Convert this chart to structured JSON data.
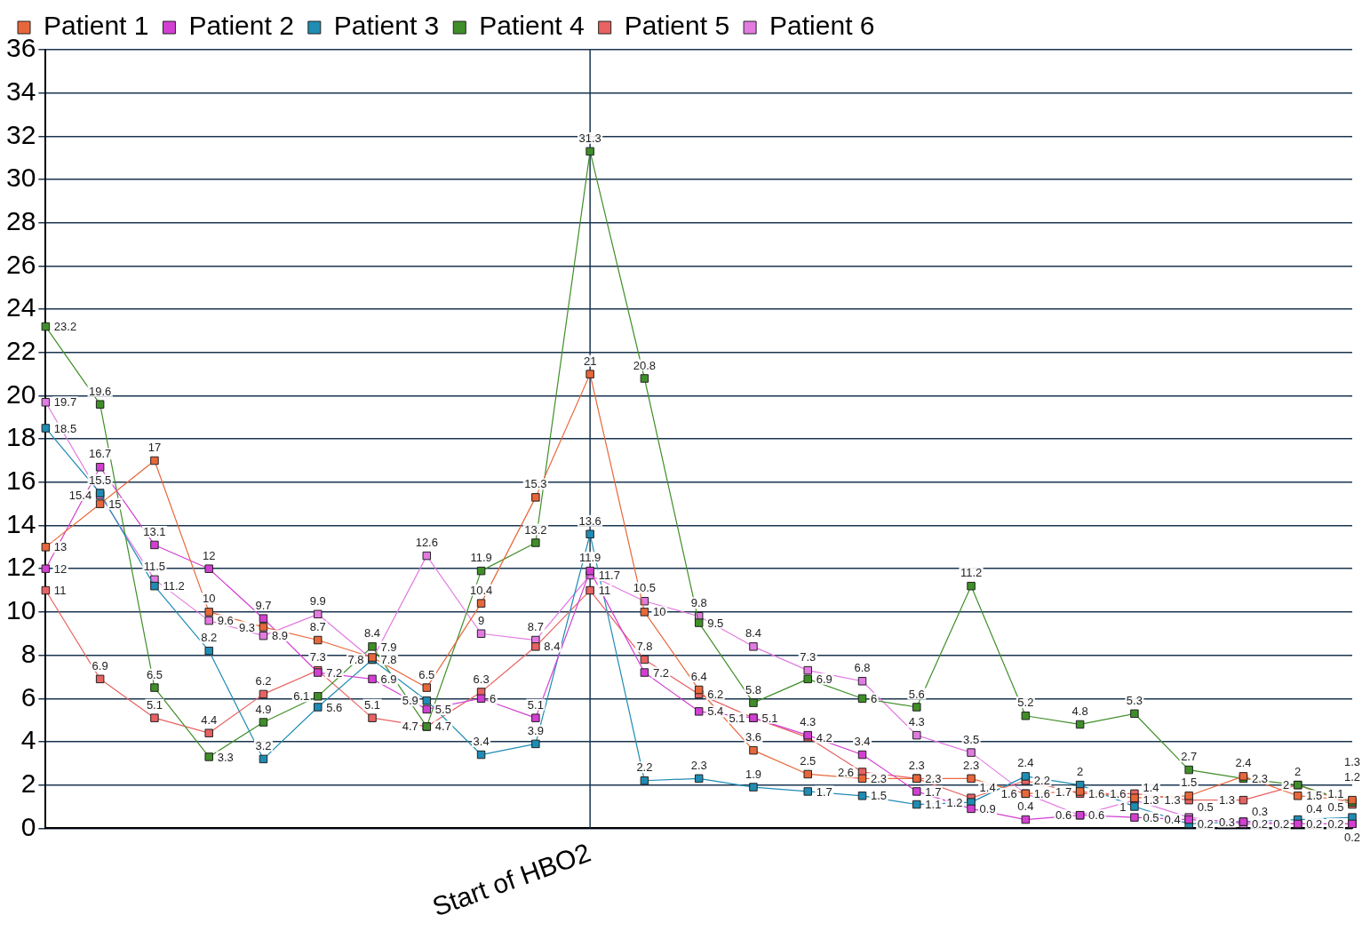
{
  "chart_data": {
    "type": "line",
    "categories": [
      null,
      null,
      null,
      null,
      null,
      null,
      null,
      null,
      null,
      null,
      "Start of HBO2",
      null,
      null,
      null,
      null,
      null,
      null,
      null,
      null,
      null,
      null,
      null,
      null,
      null,
      null
    ],
    "ylim": [
      0,
      36
    ],
    "yticks": [
      0,
      2,
      4,
      6,
      8,
      10,
      12,
      14,
      16,
      18,
      20,
      22,
      24,
      26,
      28,
      30,
      32,
      34,
      36
    ],
    "grid": "y",
    "legend": "top",
    "marker": "square",
    "line_style": "solid",
    "data_labels": true,
    "ref_lines": [
      {
        "axis": "x",
        "value": "Start of HBO2",
        "color": "#1a3550"
      }
    ],
    "series": [
      {
        "name": "Patient 1",
        "color": "#e8673a",
        "values": [
          13,
          15,
          17,
          10,
          9.3,
          8.7,
          7.9,
          6.5,
          10.4,
          15.3,
          21,
          10,
          6.4,
          3.6,
          2.5,
          2.3,
          2.3,
          2.3,
          1.6,
          1.7,
          1.4,
          1.5,
          2.4,
          1.5,
          1.3
        ]
      },
      {
        "name": "Patient 2",
        "color": "#d23fd2",
        "values": [
          12,
          16.7,
          13.1,
          12,
          9.7,
          7.2,
          6.9,
          5.5,
          6,
          5.1,
          11.9,
          7.2,
          5.4,
          5.1,
          4.3,
          3.4,
          1.7,
          0.9,
          0.4,
          0.6,
          0.5,
          0.4,
          0.3,
          0.2,
          0.2
        ]
      },
      {
        "name": "Patient 3",
        "color": "#1f8cb4",
        "values": [
          18.5,
          15.5,
          11.2,
          8.2,
          3.2,
          5.6,
          7.8,
          5.9,
          3.4,
          3.9,
          13.6,
          2.2,
          2.3,
          1.9,
          1.7,
          1.5,
          1.1,
          1.2,
          2.4,
          2,
          1,
          0.2,
          0.3,
          0.4,
          0.5
        ]
      },
      {
        "name": "Patient 4",
        "color": "#3f8f28",
        "values": [
          23.2,
          19.6,
          6.5,
          3.3,
          4.9,
          6.1,
          8.4,
          4.7,
          11.9,
          13.2,
          31.3,
          20.8,
          9.5,
          5.8,
          6.9,
          6,
          5.6,
          11.2,
          5.2,
          4.8,
          5.3,
          2.7,
          2.3,
          2,
          1.2
        ]
      },
      {
        "name": "Patient 5",
        "color": "#e86262",
        "values": [
          11,
          6.9,
          5.1,
          4.4,
          6.2,
          7.3,
          5.1,
          4.7,
          6.3,
          8.4,
          11,
          7.8,
          6.2,
          5.1,
          4.2,
          2.6,
          2.3,
          1.4,
          2.2,
          1.6,
          1.6,
          1.3,
          1.3,
          2,
          1.1
        ]
      },
      {
        "name": "Patient 6",
        "color": "#e27ae2",
        "values": [
          19.7,
          15.4,
          11.5,
          9.6,
          8.9,
          9.9,
          7.8,
          12.6,
          9,
          8.7,
          11.7,
          10.5,
          9.8,
          8.4,
          7.3,
          6.8,
          4.3,
          3.5,
          1.6,
          0.6,
          1.3,
          0.5,
          0.2,
          0.2,
          0.2
        ]
      }
    ]
  }
}
